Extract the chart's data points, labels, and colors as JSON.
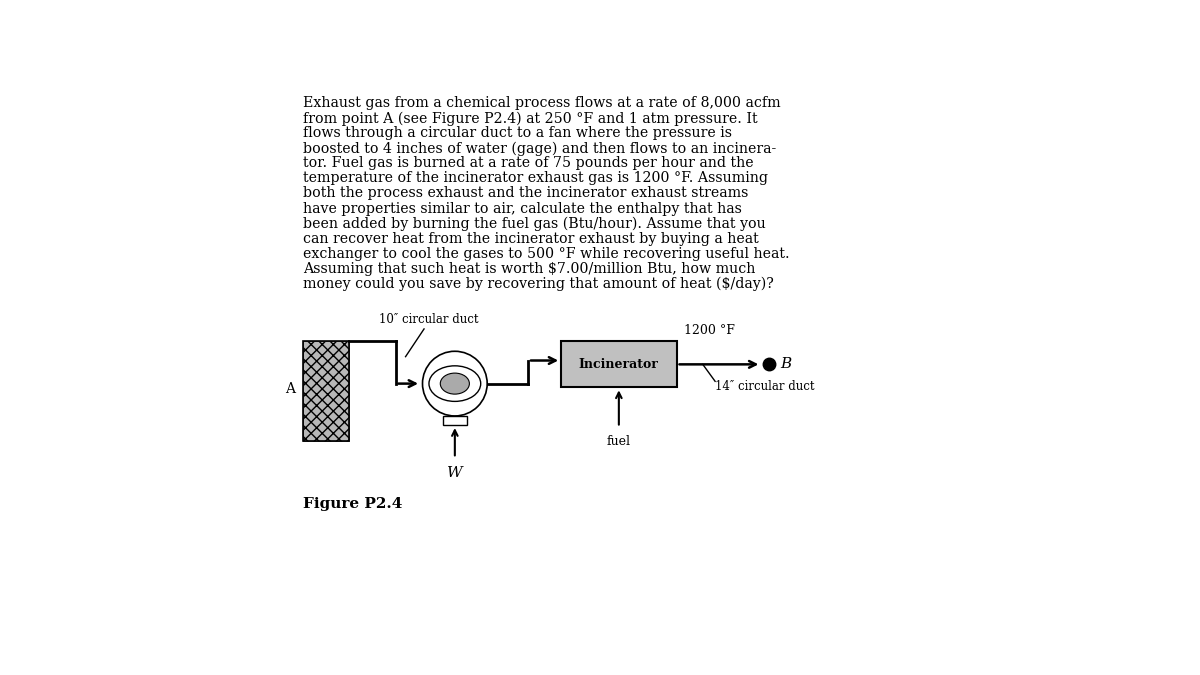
{
  "text_block": "Exhaust gas from a chemical process flows at a rate of 8,000 acfm\nfrom point A (see Figure P2.4) at 250 °F and 1 atm pressure. It\nflows through a circular duct to a fan where the pressure is\nboosted to 4 inches of water (gage) and then flows to an incinera-\ntor. Fuel gas is burned at a rate of 75 pounds per hour and the\ntemperature of the incinerator exhaust gas is 1200 °F. Assuming\nboth the process exhaust and the incinerator exhaust streams\nhave properties similar to air, calculate the enthalpy that has\nbeen added by burning the fuel gas (Btu/hour). Assume that you\ncan recover heat from the incinerator exhaust by buying a heat\nexchanger to cool the gases to 500 °F while recovering useful heat.\nAssuming that such heat is worth $7.00/million Btu, how much\nmoney could you save by recovering that amount of heat ($/day)?",
  "figure_caption": "Figure P2.4",
  "label_10inch": "10″ circular duct",
  "label_14inch": "14″ circular duct",
  "label_1200F": "1200 °F",
  "label_fuel": "fuel",
  "label_W": "W",
  "label_A": "A",
  "label_B": "B",
  "label_incinerator": "Incinerator",
  "bg_color": "#ffffff",
  "text_color": "#000000"
}
